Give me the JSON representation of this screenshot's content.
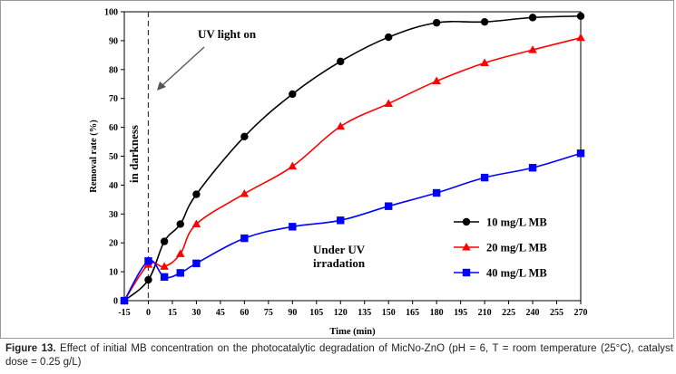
{
  "chart_data": {
    "type": "line",
    "xlabel": "Time (min)",
    "ylabel": "Removal rate (%)",
    "xlim": [
      -15,
      270
    ],
    "ylim": [
      0,
      100
    ],
    "x_ticks": [
      -15,
      0,
      15,
      30,
      45,
      60,
      75,
      90,
      105,
      120,
      135,
      150,
      165,
      180,
      195,
      210,
      225,
      240,
      255,
      270
    ],
    "y_ticks": [
      0,
      10,
      20,
      30,
      40,
      50,
      60,
      70,
      80,
      90,
      100
    ],
    "grid": false,
    "legend_position": "center-right",
    "series": [
      {
        "name": "10 mg/L MB",
        "color": "#000000",
        "marker": "circle",
        "x": [
          -15,
          0,
          10,
          20,
          30,
          60,
          90,
          120,
          150,
          180,
          210,
          240,
          270
        ],
        "y": [
          0,
          7.2,
          20.5,
          26.5,
          36.8,
          56.8,
          71.5,
          82.8,
          91.2,
          96.2,
          96.5,
          98.0,
          98.5
        ]
      },
      {
        "name": "20 mg/L MB",
        "color": "#ff0000",
        "marker": "triangle",
        "x": [
          -15,
          0,
          10,
          20,
          30,
          60,
          90,
          120,
          150,
          180,
          210,
          240,
          270
        ],
        "y": [
          0,
          12.5,
          11.8,
          16.2,
          26.5,
          37.0,
          46.5,
          60.3,
          68.2,
          76.0,
          82.3,
          86.8,
          91.0
        ]
      },
      {
        "name": "40 mg/L MB",
        "color": "#0000ff",
        "marker": "square",
        "x": [
          -15,
          0,
          10,
          20,
          30,
          60,
          90,
          120,
          150,
          180,
          210,
          240,
          270
        ],
        "y": [
          0,
          13.7,
          8.2,
          9.6,
          12.9,
          21.6,
          25.6,
          27.8,
          32.7,
          37.3,
          42.6,
          46.0,
          51.0
        ]
      }
    ],
    "annotations": {
      "uv_light_on": "UV light on",
      "in_darkness": "in darkness",
      "under_uv_line1": "Under UV",
      "under_uv_line2": "irradation"
    },
    "uv_on_x": 0
  },
  "caption": {
    "label": "Figure 13.",
    "text": "Effect of initial MB concentration on the photocatalytic degradation of MicNo-ZnO (pH = 6, T = room temperature (25°C), catalyst dose = 0.25 g/L)"
  }
}
